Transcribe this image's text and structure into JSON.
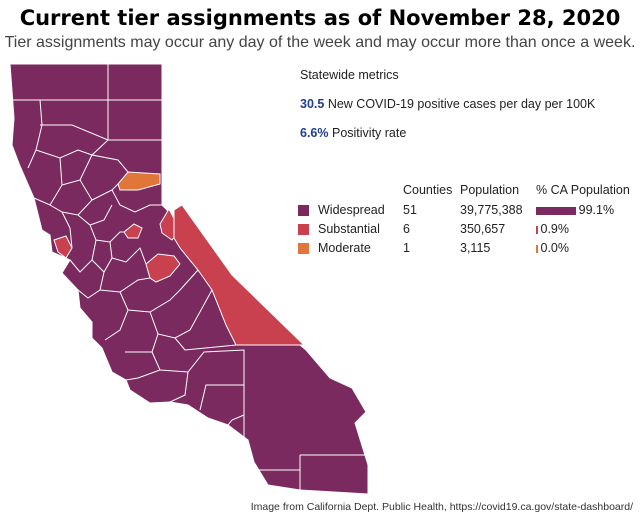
{
  "title": "Current tier assignments as of November 28, 2020",
  "subtitle": "Tier assignments may occur any day of the week and may occur more than once a week.",
  "metrics": {
    "heading": "Statewide metrics",
    "cases_value": "30.5",
    "cases_label": "New COVID-19 positive cases per day per 100K",
    "positivity_value": "6.6%",
    "positivity_label": "Positivity rate"
  },
  "legend": {
    "headers": {
      "counties": "Counties",
      "population": "Population",
      "share": "% CA Population"
    },
    "tiers": [
      {
        "name": "Widespread",
        "counties": "51",
        "population": "39,775,388",
        "share": "99.1%",
        "share_value": 99.1,
        "color": "#7b2a5f"
      },
      {
        "name": "Substantial",
        "counties": "6",
        "population": "350,657",
        "share": "0.9%",
        "share_value": 0.9,
        "color": "#c9404e"
      },
      {
        "name": "Moderate",
        "counties": "1",
        "population": "3,115",
        "share": "0.0%",
        "share_value": 0.0,
        "color": "#e0763a"
      }
    ]
  },
  "map_colors": {
    "widespread": "#7b2a5f",
    "substantial": "#c9404e",
    "moderate": "#e0763a",
    "border": "#ffffff"
  },
  "source": "Image from California Dept. Public Health, https://covid19.ca.gov/state-dashboard/"
}
